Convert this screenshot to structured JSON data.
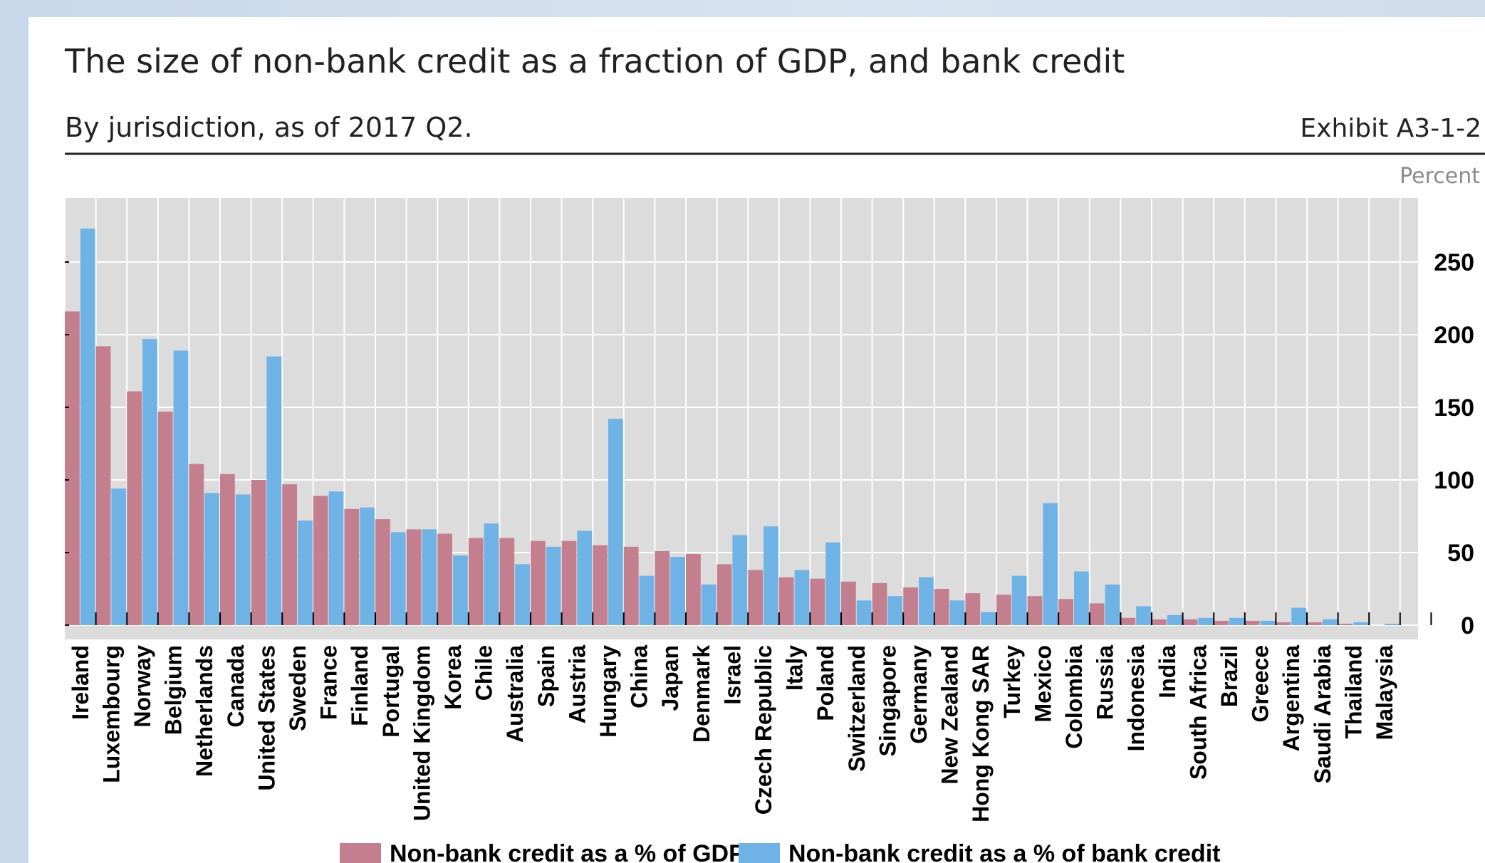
{
  "colors": {
    "plot_bg": "#dcdcdc",
    "grid": "#ffffff",
    "series_gdp": "#c47f8f",
    "series_bank": "#6fb2e6"
  },
  "chart_data": {
    "type": "bar",
    "title": "The size of non-bank credit as a fraction of GDP, and bank credit",
    "subtitle": "By jurisdiction, as of 2017 Q2.",
    "exhibit": "Exhibit A3-1-2",
    "unit_label": "Percent",
    "ylim": [
      0,
      285
    ],
    "yticks": [
      0,
      50,
      100,
      150,
      200,
      250
    ],
    "y_axis_side": "right",
    "grid": true,
    "legend_placement": "bottom",
    "categories": [
      "Ireland",
      "Luxembourg",
      "Norway",
      "Belgium",
      "Netherlands",
      "Canada",
      "United States",
      "Sweden",
      "France",
      "Finland",
      "Portugal",
      "United Kingdom",
      "Korea",
      "Chile",
      "Australia",
      "Spain",
      "Austria",
      "Hungary",
      "China",
      "Japan",
      "Denmark",
      "Israel",
      "Czech Republic",
      "Italy",
      "Poland",
      "Switzerland",
      "Singapore",
      "Germany",
      "New Zealand",
      "Hong Kong SAR",
      "Turkey",
      "Mexico",
      "Colombia",
      "Russia",
      "Indonesia",
      "India",
      "South Africa",
      "Brazil",
      "Greece",
      "Argentina",
      "Saudi Arabia",
      "Thailand",
      "Malaysia"
    ],
    "series": [
      {
        "name": "Non-bank credit as a % of GDP",
        "values": [
          216,
          192,
          161,
          147,
          111,
          104,
          100,
          97,
          89,
          80,
          73,
          66,
          63,
          60,
          60,
          58,
          58,
          55,
          54,
          51,
          49,
          42,
          38,
          33,
          32,
          30,
          29,
          26,
          25,
          22,
          21,
          20,
          18,
          15,
          5,
          4,
          4,
          3,
          3,
          2,
          2,
          1,
          0
        ]
      },
      {
        "name": "Non-bank credit as a % of bank credit",
        "values": [
          273,
          94,
          197,
          189,
          91,
          90,
          185,
          72,
          92,
          81,
          64,
          66,
          48,
          70,
          42,
          54,
          65,
          142,
          34,
          47,
          28,
          62,
          68,
          38,
          57,
          17,
          20,
          33,
          17,
          9,
          34,
          84,
          37,
          28,
          13,
          7,
          5,
          5,
          3,
          12,
          4,
          2,
          1
        ]
      }
    ]
  }
}
